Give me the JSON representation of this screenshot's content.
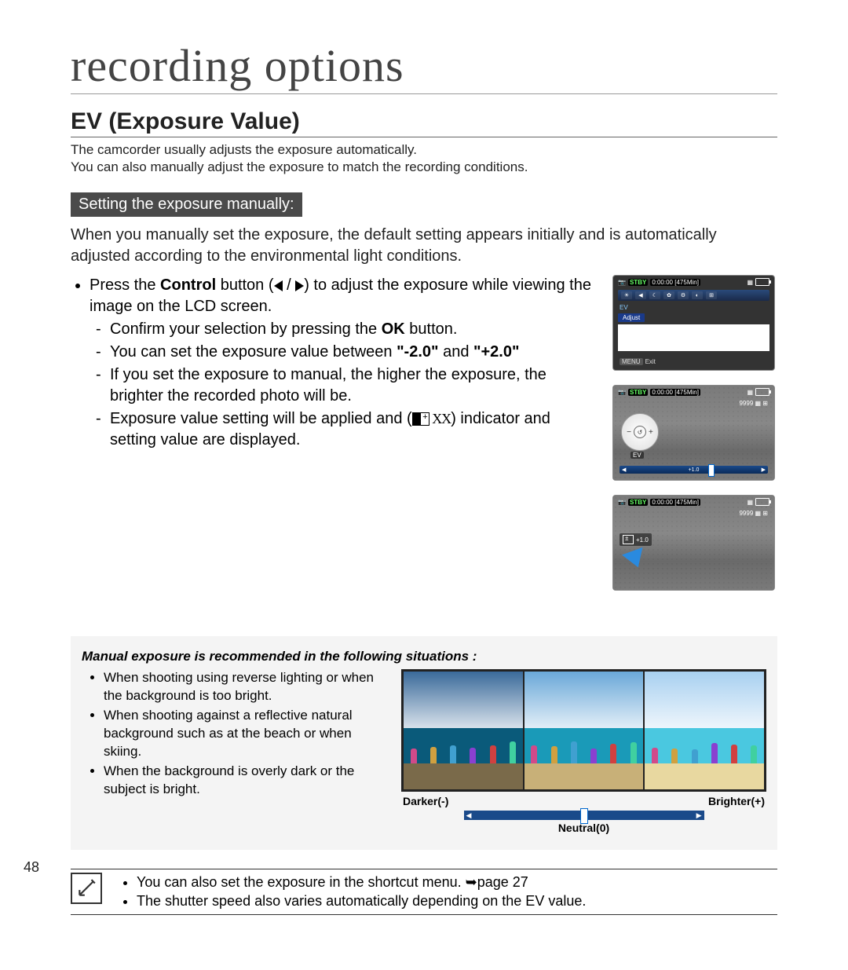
{
  "page": {
    "chapter_title": "recording options",
    "section_title": "EV (Exposure Value)",
    "page_number": "48"
  },
  "intro": {
    "line1": "The camcorder usually adjusts the exposure automatically.",
    "line2": "You can also manually adjust the exposure to match the recording conditions."
  },
  "subheading": "Setting the exposure manually:",
  "body_text": "When you manually set the exposure, the default setting appears initially and is automatically adjusted according to the environmental light conditions.",
  "bullet": {
    "text_a": "Press the ",
    "control": "Control",
    "text_b": " button (",
    "text_c": " / ",
    "text_d": ") to adjust the exposure while viewing the image on the LCD screen."
  },
  "dashes": {
    "d1a": "Confirm your selection by pressing the ",
    "d1_ok": "OK",
    "d1b": " button.",
    "d2a": "You can set the exposure value between ",
    "d2_min": "\"-2.0\"",
    "d2_and": " and ",
    "d2_max": "\"+2.0\"",
    "d3": "If you set the exposure to manual, the higher the exposure, the brighter the recorded photo will be.",
    "d4a": "Exposure value setting will be applied and (",
    "d4_xx": " XX",
    "d4b": ") indicator and setting value are displayed."
  },
  "lcd": {
    "stby": "STBY",
    "time": "0:00:00",
    "remain": "[475Min]",
    "ev_label": "EV",
    "adjust": "Adjust",
    "exit": "Exit",
    "menu_tag": "MENU",
    "photo_count": "9999",
    "slider_val": "+1.0",
    "ev_indicator": "+1.0"
  },
  "situations": {
    "title": "Manual exposure is recommended in the following situations :",
    "items": [
      "When shooting using reverse lighting or when the background is too bright.",
      "When shooting against a reflective natural background such as at the beach or when skiing.",
      "When the background is overly dark or the subject is bright."
    ],
    "labels": {
      "darker": "Darker(-)",
      "brighter": "Brighter(+)",
      "neutral": "Neutral(0)"
    },
    "trip_colors": {
      "dark": {
        "sky": "#3a6a9a",
        "sea": "#0a5a7a",
        "sand": "#7a6a4a"
      },
      "neutral": {
        "sky": "#6aa8d8",
        "sea": "#1a9ab8",
        "sand": "#c8b078"
      },
      "bright": {
        "sky": "#a8d0f0",
        "sea": "#4ac8e0",
        "sand": "#e8d8a0"
      }
    },
    "people_colors": [
      "#d04a8a",
      "#d0a040",
      "#40a0d0",
      "#8a40d0",
      "#d04040",
      "#40d0a0"
    ]
  },
  "notes": {
    "n1a": "You can also set the exposure in the shortcut menu. ",
    "n1_arrow": "➥",
    "n1b": "page 27",
    "n2": "The shutter speed also varies automatically depending on the EV value."
  },
  "colors": {
    "heading_bg": "#4a4a4a",
    "situations_bg": "#f4f4f4",
    "slider_bg": "#1a4a8a",
    "stby_color": "#66ff66"
  }
}
